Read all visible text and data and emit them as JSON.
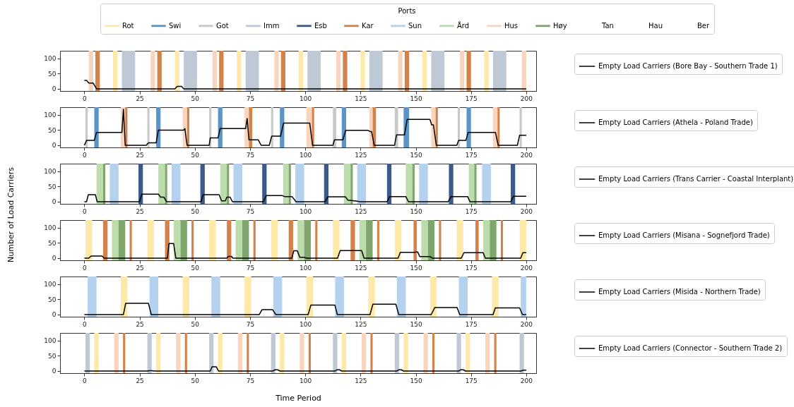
{
  "chart_data": [
    {
      "type": "line",
      "legend_title": "Ports",
      "legend": "right",
      "xlim": [
        -11,
        204.5
      ],
      "xticks": [
        0,
        25,
        50,
        75,
        100,
        125,
        150,
        175,
        200
      ],
      "ylim": [
        -7,
        125
      ],
      "yticks": [
        0,
        50,
        100
      ],
      "series": [
        {
          "name": "Empty Load Carriers (Bore Bay - Southern Trade 1)",
          "color": "#000000",
          "x": [
            0,
            1,
            2,
            4,
            5.5,
            41,
            42,
            44,
            45,
            200
          ],
          "values": [
            28,
            28,
            19,
            19,
            0,
            0,
            8,
            8,
            0,
            0
          ]
        },
        {
          "name": "Rot",
          "color": "#fee9a8",
          "type": "area"
        },
        {
          "name": "Swi",
          "color": "#5b95c8",
          "type": "area"
        },
        {
          "name": "Got",
          "color": "#c8c8c8",
          "type": "area"
        },
        {
          "name": "Imm",
          "color": "#bfc9d6",
          "type": "area"
        },
        {
          "name": "Esb",
          "color": "#3b5a8c",
          "type": "area"
        },
        {
          "name": "Kar",
          "color": "#d3824a",
          "type": "area"
        },
        {
          "name": "Sun",
          "color": "#b4d2ee",
          "type": "area"
        },
        {
          "name": "Ård",
          "color": "#bcdcab",
          "type": "area"
        },
        {
          "name": "Hus",
          "color": "#f9d5bd",
          "type": "area"
        },
        {
          "name": "Høy",
          "color": "#7ea56b",
          "type": "area"
        },
        {
          "name": "Tan",
          "type": "area"
        },
        {
          "name": "Hau",
          "type": "area"
        },
        {
          "name": "Ber",
          "type": "area"
        }
      ],
      "bands": [
        {
          "axis": "x",
          "from": 2,
          "to": 4,
          "color": "#f9d5bd"
        },
        {
          "axis": "x",
          "from": 30,
          "to": 32,
          "color": "#f9d5bd"
        },
        {
          "axis": "x",
          "from": 58,
          "to": 60,
          "color": "#f9d5bd"
        },
        {
          "axis": "x",
          "from": 86,
          "to": 88,
          "color": "#f9d5bd"
        },
        {
          "axis": "x",
          "from": 114,
          "to": 116,
          "color": "#f9d5bd"
        },
        {
          "axis": "x",
          "from": 142,
          "to": 144,
          "color": "#f9d5bd"
        },
        {
          "axis": "x",
          "from": 170,
          "to": 172,
          "color": "#f9d5bd"
        },
        {
          "axis": "x",
          "from": 198,
          "to": 200,
          "color": "#f9d5bd"
        },
        {
          "axis": "x",
          "from": 5,
          "to": 7,
          "color": "#d3824a"
        },
        {
          "axis": "x",
          "from": 33,
          "to": 35,
          "color": "#d3824a"
        },
        {
          "axis": "x",
          "from": 61,
          "to": 63,
          "color": "#d3824a"
        },
        {
          "axis": "x",
          "from": 89,
          "to": 91,
          "color": "#d3824a"
        },
        {
          "axis": "x",
          "from": 117,
          "to": 119,
          "color": "#d3824a"
        },
        {
          "axis": "x",
          "from": 145,
          "to": 147,
          "color": "#d3824a"
        },
        {
          "axis": "x",
          "from": 173,
          "to": 175,
          "color": "#d3824a"
        },
        {
          "axis": "x",
          "from": 13,
          "to": 15,
          "color": "#fee9a8"
        },
        {
          "axis": "x",
          "from": 41,
          "to": 43,
          "color": "#fee9a8"
        },
        {
          "axis": "x",
          "from": 69,
          "to": 71,
          "color": "#fee9a8"
        },
        {
          "axis": "x",
          "from": 97,
          "to": 99,
          "color": "#fee9a8"
        },
        {
          "axis": "x",
          "from": 125,
          "to": 127,
          "color": "#fee9a8"
        },
        {
          "axis": "x",
          "from": 153,
          "to": 155,
          "color": "#fee9a8"
        },
        {
          "axis": "x",
          "from": 181,
          "to": 183,
          "color": "#fee9a8"
        },
        {
          "axis": "x",
          "from": 17,
          "to": 23,
          "color": "#bfc9d6"
        },
        {
          "axis": "x",
          "from": 45,
          "to": 51,
          "color": "#bfc9d6"
        },
        {
          "axis": "x",
          "from": 73,
          "to": 79,
          "color": "#bfc9d6"
        },
        {
          "axis": "x",
          "from": 101,
          "to": 107,
          "color": "#bfc9d6"
        },
        {
          "axis": "x",
          "from": 129,
          "to": 135,
          "color": "#bfc9d6"
        },
        {
          "axis": "x",
          "from": 157,
          "to": 163,
          "color": "#bfc9d6"
        },
        {
          "axis": "x",
          "from": 185,
          "to": 191,
          "color": "#bfc9d6"
        }
      ]
    },
    {
      "type": "line",
      "legend": "right",
      "xlim": [
        -11,
        204.5
      ],
      "xticks": [
        0,
        25,
        50,
        75,
        100,
        125,
        150,
        175,
        200
      ],
      "ylim": [
        -7,
        125
      ],
      "yticks": [
        0,
        50,
        100
      ],
      "series": [
        {
          "name": "Empty Load Carriers (Athela - Poland Trade)",
          "color": "#000000",
          "x": [
            0,
            1,
            4.5,
            5.5,
            17,
            17.7,
            18.5,
            28,
            29,
            32.5,
            33.5,
            45,
            45.5,
            46.5,
            56.5,
            57,
            60.5,
            61.5,
            73,
            73.7,
            74.5,
            78.7,
            80,
            83.7,
            84.8,
            88.8,
            90.2,
            102,
            103.3,
            112.5,
            113.2,
            117,
            118.3,
            128.4,
            129.4,
            130,
            131.2,
            140.4,
            141.3,
            144.9,
            146.1,
            156.4,
            157.2,
            158,
            159.3,
            168.6,
            169.4,
            172.7,
            173.7,
            186.1,
            187.3,
            196,
            197,
            200
          ],
          "values": [
            0,
            16,
            16,
            42,
            42,
            118,
            0,
            0,
            8,
            8,
            50,
            50,
            55,
            0,
            0,
            24,
            24,
            55,
            55,
            88,
            18,
            18,
            0,
            0,
            30,
            30,
            73,
            73,
            0,
            0,
            18,
            18,
            49,
            49,
            45,
            45,
            0,
            0,
            34,
            34,
            85,
            85,
            67,
            67,
            0,
            0,
            16,
            16,
            42,
            42,
            0,
            0,
            33,
            33
          ]
        }
      ],
      "bands": [
        {
          "axis": "x",
          "from": 0.5,
          "to": 1.5,
          "color": "#c8c8c8"
        },
        {
          "axis": "x",
          "from": 28.5,
          "to": 29.5,
          "color": "#c8c8c8"
        },
        {
          "axis": "x",
          "from": 56.5,
          "to": 57.5,
          "color": "#c8c8c8"
        },
        {
          "axis": "x",
          "from": 84.5,
          "to": 85.5,
          "color": "#c8c8c8"
        },
        {
          "axis": "x",
          "from": 112.5,
          "to": 114,
          "color": "#c8c8c8"
        },
        {
          "axis": "x",
          "from": 140.5,
          "to": 142,
          "color": "#c8c8c8"
        },
        {
          "axis": "x",
          "from": 169,
          "to": 170,
          "color": "#c8c8c8"
        },
        {
          "axis": "x",
          "from": 197,
          "to": 198,
          "color": "#c8c8c8"
        },
        {
          "axis": "x",
          "from": 4.5,
          "to": 6.5,
          "color": "#5b95c8"
        },
        {
          "axis": "x",
          "from": 32.5,
          "to": 34.5,
          "color": "#5b95c8"
        },
        {
          "axis": "x",
          "from": 60.5,
          "to": 62.5,
          "color": "#5b95c8"
        },
        {
          "axis": "x",
          "from": 88.5,
          "to": 90.5,
          "color": "#5b95c8"
        },
        {
          "axis": "x",
          "from": 116.5,
          "to": 118.5,
          "color": "#5b95c8"
        },
        {
          "axis": "x",
          "from": 144.5,
          "to": 147,
          "color": "#5b95c8"
        },
        {
          "axis": "x",
          "from": 173,
          "to": 175,
          "color": "#5b95c8"
        },
        {
          "axis": "x",
          "from": 16.5,
          "to": 18.5,
          "color": "#f9d5bd"
        },
        {
          "axis": "x",
          "from": 44.5,
          "to": 46.5,
          "color": "#f9d5bd"
        },
        {
          "axis": "x",
          "from": 72.5,
          "to": 74.5,
          "color": "#f9d5bd"
        },
        {
          "axis": "x",
          "from": 100.5,
          "to": 103,
          "color": "#f9d5bd"
        },
        {
          "axis": "x",
          "from": 129,
          "to": 130.5,
          "color": "#f9d5bd"
        },
        {
          "axis": "x",
          "from": 157,
          "to": 159,
          "color": "#f9d5bd"
        },
        {
          "axis": "x",
          "from": 185,
          "to": 187,
          "color": "#f9d5bd"
        },
        {
          "axis": "x",
          "from": 18.5,
          "to": 19.5,
          "color": "#d3824a"
        },
        {
          "axis": "x",
          "from": 46.5,
          "to": 47.5,
          "color": "#d3824a"
        },
        {
          "axis": "x",
          "from": 74.5,
          "to": 76,
          "color": "#d3824a"
        },
        {
          "axis": "x",
          "from": 103,
          "to": 104,
          "color": "#d3824a"
        },
        {
          "axis": "x",
          "from": 130.5,
          "to": 132,
          "color": "#d3824a"
        },
        {
          "axis": "x",
          "from": 159,
          "to": 160,
          "color": "#d3824a"
        },
        {
          "axis": "x",
          "from": 187,
          "to": 188,
          "color": "#d3824a"
        }
      ]
    },
    {
      "type": "line",
      "legend": "right",
      "ylabel": "Number of Load Carriers",
      "xlim": [
        -11,
        204.5
      ],
      "xticks": [
        0,
        25,
        50,
        75,
        100,
        125,
        150,
        175,
        200
      ],
      "ylim": [
        -7,
        125
      ],
      "yticks": [
        0,
        50,
        100
      ],
      "series": [
        {
          "name": "Empty Load Carriers (Trans Carrier - Coastal Interplant)",
          "color": "#000000",
          "x": [
            0,
            1,
            1.8,
            5,
            5.8,
            25,
            26,
            33.5,
            34.5,
            36,
            37.2,
            52.8,
            53.8,
            61,
            62.1,
            63.8,
            64.5,
            66,
            67,
            81,
            82.3,
            89.6,
            90.7,
            94,
            95.8,
            109,
            110.2,
            118.2,
            119.3,
            123,
            125,
            137,
            138.2,
            145.5,
            146.7,
            164.7,
            166,
            173.5,
            174.5,
            193,
            194.2,
            200
          ],
          "values": [
            0,
            0,
            23,
            23,
            0,
            0,
            25,
            25,
            15,
            15,
            0,
            0,
            23,
            23,
            3,
            3,
            15,
            15,
            0,
            0,
            20,
            20,
            17,
            17,
            0,
            0,
            16,
            16,
            5,
            2,
            0,
            0,
            17,
            17,
            0,
            0,
            17,
            17,
            0,
            0,
            18,
            18
          ]
        }
      ],
      "bands": [
        {
          "axis": "x",
          "from": 5.5,
          "to": 8.5,
          "color": "#bcdcab"
        },
        {
          "axis": "x",
          "from": 33.5,
          "to": 36.5,
          "color": "#bcdcab"
        },
        {
          "axis": "x",
          "from": 61.5,
          "to": 64.5,
          "color": "#bcdcab"
        },
        {
          "axis": "x",
          "from": 90,
          "to": 92.5,
          "color": "#bcdcab"
        },
        {
          "axis": "x",
          "from": 117.5,
          "to": 120.5,
          "color": "#bcdcab"
        },
        {
          "axis": "x",
          "from": 145.5,
          "to": 148.5,
          "color": "#bcdcab"
        },
        {
          "axis": "x",
          "from": 174,
          "to": 176.5,
          "color": "#bcdcab"
        },
        {
          "axis": "x",
          "from": 8.5,
          "to": 9.5,
          "color": "#7ea56b"
        },
        {
          "axis": "x",
          "from": 36.5,
          "to": 37.5,
          "color": "#7ea56b"
        },
        {
          "axis": "x",
          "from": 64.5,
          "to": 65.5,
          "color": "#7ea56b"
        },
        {
          "axis": "x",
          "from": 92.5,
          "to": 93.5,
          "color": "#7ea56b"
        },
        {
          "axis": "x",
          "from": 120.5,
          "to": 121.5,
          "color": "#7ea56b"
        },
        {
          "axis": "x",
          "from": 148.5,
          "to": 149.5,
          "color": "#7ea56b"
        },
        {
          "axis": "x",
          "from": 176.5,
          "to": 177.5,
          "color": "#7ea56b"
        },
        {
          "axis": "x",
          "from": 11.5,
          "to": 15.5,
          "color": "#b4d2ee"
        },
        {
          "axis": "x",
          "from": 39.5,
          "to": 43.5,
          "color": "#b4d2ee"
        },
        {
          "axis": "x",
          "from": 67.5,
          "to": 71.5,
          "color": "#b4d2ee"
        },
        {
          "axis": "x",
          "from": 95.5,
          "to": 99.5,
          "color": "#b4d2ee"
        },
        {
          "axis": "x",
          "from": 123.5,
          "to": 127.5,
          "color": "#b4d2ee"
        },
        {
          "axis": "x",
          "from": 151.5,
          "to": 155.5,
          "color": "#b4d2ee"
        },
        {
          "axis": "x",
          "from": 180,
          "to": 184,
          "color": "#b4d2ee"
        },
        {
          "axis": "x",
          "from": 24.5,
          "to": 26.5,
          "color": "#3b5a8c"
        },
        {
          "axis": "x",
          "from": 52.5,
          "to": 54.5,
          "color": "#3b5a8c"
        },
        {
          "axis": "x",
          "from": 80.5,
          "to": 82.5,
          "color": "#3b5a8c"
        },
        {
          "axis": "x",
          "from": 108.5,
          "to": 110.5,
          "color": "#3b5a8c"
        },
        {
          "axis": "x",
          "from": 137,
          "to": 139,
          "color": "#3b5a8c"
        },
        {
          "axis": "x",
          "from": 165,
          "to": 167,
          "color": "#3b5a8c"
        },
        {
          "axis": "x",
          "from": 193,
          "to": 195,
          "color": "#3b5a8c"
        }
      ]
    },
    {
      "type": "line",
      "legend": "right",
      "xlim": [
        -11,
        204.5
      ],
      "xticks": [
        0,
        25,
        50,
        75,
        100,
        125,
        150,
        175,
        200
      ],
      "ylim": [
        -7,
        125
      ],
      "yticks": [
        0,
        50,
        100
      ],
      "series": [
        {
          "name": "Empty Load Carriers (Misana - Sognefjord Trade)",
          "color": "#000000",
          "x": [
            0,
            2,
            3,
            8,
            9,
            37.6,
            38.3,
            40.4,
            41.4,
            64.4,
            65.3,
            66.5,
            67.3,
            93.9,
            94.8,
            96.4,
            97.5,
            99.5,
            100.5,
            114.6,
            115.8,
            125.5,
            126.6,
            142,
            143,
            149.5,
            150,
            150.9,
            151.8,
            156.5,
            157.5,
            170.6,
            171.8,
            180.5,
            181.5,
            197.5,
            198.5,
            200
          ],
          "values": [
            0,
            0,
            7,
            7,
            0,
            0,
            48,
            48,
            0,
            0,
            6,
            6,
            0,
            0,
            24,
            24,
            3,
            3,
            0,
            0,
            25,
            25,
            0,
            0,
            19,
            19,
            20,
            20,
            5,
            5,
            0,
            0,
            18,
            18,
            0,
            0,
            18,
            18
          ]
        }
      ],
      "bands": [
        {
          "axis": "x",
          "from": 0.5,
          "to": 3.5,
          "color": "#fee9a8"
        },
        {
          "axis": "x",
          "from": 28.5,
          "to": 31.5,
          "color": "#fee9a8"
        },
        {
          "axis": "x",
          "from": 56.5,
          "to": 59.5,
          "color": "#fee9a8"
        },
        {
          "axis": "x",
          "from": 84.5,
          "to": 87.5,
          "color": "#fee9a8"
        },
        {
          "axis": "x",
          "from": 112.5,
          "to": 115.5,
          "color": "#fee9a8"
        },
        {
          "axis": "x",
          "from": 140.5,
          "to": 143.5,
          "color": "#fee9a8"
        },
        {
          "axis": "x",
          "from": 168.5,
          "to": 171.5,
          "color": "#fee9a8"
        },
        {
          "axis": "x",
          "from": 197,
          "to": 200,
          "color": "#fee9a8"
        },
        {
          "axis": "x",
          "from": 8.5,
          "to": 10.5,
          "color": "#d3824a"
        },
        {
          "axis": "x",
          "from": 36.5,
          "to": 38.5,
          "color": "#d3824a"
        },
        {
          "axis": "x",
          "from": 64.5,
          "to": 66.5,
          "color": "#d3824a"
        },
        {
          "axis": "x",
          "from": 92.5,
          "to": 94.5,
          "color": "#d3824a"
        },
        {
          "axis": "x",
          "from": 120.5,
          "to": 122.5,
          "color": "#d3824a"
        },
        {
          "axis": "x",
          "from": 149,
          "to": 150.5,
          "color": "#d3824a"
        },
        {
          "axis": "x",
          "from": 177,
          "to": 178.5,
          "color": "#d3824a"
        },
        {
          "axis": "x",
          "from": 12.5,
          "to": 15.5,
          "color": "#bcdcab"
        },
        {
          "axis": "x",
          "from": 40.5,
          "to": 43.5,
          "color": "#bcdcab"
        },
        {
          "axis": "x",
          "from": 68.5,
          "to": 71.5,
          "color": "#bcdcab"
        },
        {
          "axis": "x",
          "from": 96.5,
          "to": 99.5,
          "color": "#bcdcab"
        },
        {
          "axis": "x",
          "from": 124.5,
          "to": 127.5,
          "color": "#bcdcab"
        },
        {
          "axis": "x",
          "from": 152.5,
          "to": 155.5,
          "color": "#bcdcab"
        },
        {
          "axis": "x",
          "from": 180.5,
          "to": 183.5,
          "color": "#bcdcab"
        },
        {
          "axis": "x",
          "from": 15.5,
          "to": 18.5,
          "color": "#7ea56b"
        },
        {
          "axis": "x",
          "from": 43.5,
          "to": 46.5,
          "color": "#7ea56b"
        },
        {
          "axis": "x",
          "from": 71.5,
          "to": 74.5,
          "color": "#7ea56b"
        },
        {
          "axis": "x",
          "from": 99.5,
          "to": 102.5,
          "color": "#7ea56b"
        },
        {
          "axis": "x",
          "from": 127.5,
          "to": 130.5,
          "color": "#7ea56b"
        },
        {
          "axis": "x",
          "from": 155.5,
          "to": 158.5,
          "color": "#7ea56b"
        },
        {
          "axis": "x",
          "from": 183.5,
          "to": 186.5,
          "color": "#7ea56b"
        },
        {
          "axis": "x",
          "from": 20.5,
          "to": 21.5,
          "color": "#d3824a"
        },
        {
          "axis": "x",
          "from": 48.5,
          "to": 49.5,
          "color": "#d3824a"
        },
        {
          "axis": "x",
          "from": 76.5,
          "to": 77.5,
          "color": "#d3824a"
        },
        {
          "axis": "x",
          "from": 104.5,
          "to": 105.5,
          "color": "#d3824a"
        },
        {
          "axis": "x",
          "from": 132.5,
          "to": 133.5,
          "color": "#d3824a"
        },
        {
          "axis": "x",
          "from": 160.5,
          "to": 161.5,
          "color": "#d3824a"
        },
        {
          "axis": "x",
          "from": 188.5,
          "to": 189.5,
          "color": "#d3824a"
        }
      ]
    },
    {
      "type": "line",
      "legend": "right",
      "xlim": [
        -11,
        204.5
      ],
      "xticks": [
        0,
        25,
        50,
        75,
        100,
        125,
        150,
        175,
        200
      ],
      "ylim": [
        -7,
        125
      ],
      "yticks": [
        0,
        50,
        100
      ],
      "series": [
        {
          "name": "Empty Load Carriers (Misida - Northern Trade)",
          "color": "#000000",
          "x": [
            0,
            17.7,
            18.7,
            29,
            30.3,
            79.2,
            80.4,
            85.2,
            86.7,
            101.3,
            102.5,
            113.4,
            114.5,
            129.3,
            130.6,
            141,
            142.3,
            157,
            158.6,
            168.7,
            169.9,
            185,
            186,
            197,
            198.3,
            200
          ],
          "values": [
            0,
            0,
            37,
            37,
            0,
            0,
            16,
            16,
            0,
            0,
            31,
            31,
            0,
            0,
            34,
            34,
            0,
            0,
            23,
            23,
            0,
            0,
            22,
            22,
            0,
            0
          ]
        }
      ],
      "bands": [
        {
          "axis": "x",
          "from": 1.5,
          "to": 5.5,
          "color": "#b4d2ee"
        },
        {
          "axis": "x",
          "from": 29.5,
          "to": 33.5,
          "color": "#b4d2ee"
        },
        {
          "axis": "x",
          "from": 57.5,
          "to": 61.5,
          "color": "#b4d2ee"
        },
        {
          "axis": "x",
          "from": 85.5,
          "to": 89.5,
          "color": "#b4d2ee"
        },
        {
          "axis": "x",
          "from": 113.5,
          "to": 117.5,
          "color": "#b4d2ee"
        },
        {
          "axis": "x",
          "from": 141.5,
          "to": 145.5,
          "color": "#b4d2ee"
        },
        {
          "axis": "x",
          "from": 169.5,
          "to": 173.5,
          "color": "#b4d2ee"
        },
        {
          "axis": "x",
          "from": 197.5,
          "to": 200,
          "color": "#b4d2ee"
        },
        {
          "axis": "x",
          "from": 16.5,
          "to": 19.5,
          "color": "#fee9a8"
        },
        {
          "axis": "x",
          "from": 44.5,
          "to": 47.5,
          "color": "#fee9a8"
        },
        {
          "axis": "x",
          "from": 72.5,
          "to": 75.5,
          "color": "#fee9a8"
        },
        {
          "axis": "x",
          "from": 100.5,
          "to": 103.5,
          "color": "#fee9a8"
        },
        {
          "axis": "x",
          "from": 128.5,
          "to": 131.5,
          "color": "#fee9a8"
        },
        {
          "axis": "x",
          "from": 156.5,
          "to": 159.5,
          "color": "#fee9a8"
        },
        {
          "axis": "x",
          "from": 184.5,
          "to": 187.5,
          "color": "#fee9a8"
        }
      ]
    },
    {
      "type": "line",
      "legend": "right",
      "xlabel": "Time Period",
      "xlim": [
        -11,
        204.5
      ],
      "xticks": [
        0,
        25,
        50,
        75,
        100,
        125,
        150,
        175,
        200
      ],
      "ylim": [
        -7,
        125
      ],
      "yticks": [
        0,
        50,
        100
      ],
      "series": [
        {
          "name": "Empty Load Carriers (Connector - Southern Trade 2)",
          "color": "#000000",
          "x": [
            0,
            28.5,
            29.5,
            30.5,
            31.5,
            57,
            57.8,
            59.7,
            60.7,
            85.4,
            86.3,
            87.5,
            88.5,
            113.5,
            114.3,
            115.5,
            116.5,
            141.5,
            142.3,
            143.5,
            144.5,
            169.5,
            170.3,
            171.5,
            172.5,
            197.8,
            198.6,
            200
          ],
          "values": [
            0,
            0,
            1,
            1,
            0,
            0,
            14,
            14,
            0,
            0,
            4,
            4,
            0,
            0,
            4,
            4,
            0,
            0,
            4,
            4,
            0,
            0,
            4,
            4,
            0,
            0,
            3,
            3
          ]
        }
      ],
      "bands": [
        {
          "axis": "x",
          "from": 0.5,
          "to": 2.5,
          "color": "#bfc9d6"
        },
        {
          "axis": "x",
          "from": 28.5,
          "to": 30.5,
          "color": "#bfc9d6"
        },
        {
          "axis": "x",
          "from": 56.5,
          "to": 58.5,
          "color": "#bfc9d6"
        },
        {
          "axis": "x",
          "from": 84.5,
          "to": 86.5,
          "color": "#bfc9d6"
        },
        {
          "axis": "x",
          "from": 112.5,
          "to": 114.5,
          "color": "#bfc9d6"
        },
        {
          "axis": "x",
          "from": 140.5,
          "to": 142.5,
          "color": "#bfc9d6"
        },
        {
          "axis": "x",
          "from": 168.5,
          "to": 170.5,
          "color": "#bfc9d6"
        },
        {
          "axis": "x",
          "from": 197,
          "to": 199,
          "color": "#bfc9d6"
        },
        {
          "axis": "x",
          "from": 4.5,
          "to": 6.5,
          "color": "#fee9a8"
        },
        {
          "axis": "x",
          "from": 32.5,
          "to": 34.5,
          "color": "#fee9a8"
        },
        {
          "axis": "x",
          "from": 60.5,
          "to": 62.5,
          "color": "#fee9a8"
        },
        {
          "axis": "x",
          "from": 88.5,
          "to": 90.5,
          "color": "#fee9a8"
        },
        {
          "axis": "x",
          "from": 116.5,
          "to": 118.5,
          "color": "#fee9a8"
        },
        {
          "axis": "x",
          "from": 144.5,
          "to": 146.5,
          "color": "#fee9a8"
        },
        {
          "axis": "x",
          "from": 172.5,
          "to": 174.5,
          "color": "#fee9a8"
        },
        {
          "axis": "x",
          "from": 13.5,
          "to": 15.5,
          "color": "#f9d5bd"
        },
        {
          "axis": "x",
          "from": 41.5,
          "to": 43.5,
          "color": "#f9d5bd"
        },
        {
          "axis": "x",
          "from": 69.5,
          "to": 71.5,
          "color": "#f9d5bd"
        },
        {
          "axis": "x",
          "from": 97.5,
          "to": 99.5,
          "color": "#f9d5bd"
        },
        {
          "axis": "x",
          "from": 125.5,
          "to": 127.5,
          "color": "#f9d5bd"
        },
        {
          "axis": "x",
          "from": 153.5,
          "to": 155.5,
          "color": "#f9d5bd"
        },
        {
          "axis": "x",
          "from": 181.5,
          "to": 183.5,
          "color": "#f9d5bd"
        },
        {
          "axis": "x",
          "from": 17.5,
          "to": 18.5,
          "color": "#d3824a"
        },
        {
          "axis": "x",
          "from": 45.5,
          "to": 46.5,
          "color": "#d3824a"
        },
        {
          "axis": "x",
          "from": 73.5,
          "to": 74.5,
          "color": "#d3824a"
        },
        {
          "axis": "x",
          "from": 101.5,
          "to": 102.5,
          "color": "#d3824a"
        },
        {
          "axis": "x",
          "from": 129.5,
          "to": 130.5,
          "color": "#d3824a"
        },
        {
          "axis": "x",
          "from": 157.5,
          "to": 158.5,
          "color": "#d3824a"
        },
        {
          "axis": "x",
          "from": 185.5,
          "to": 186.5,
          "color": "#d3824a"
        }
      ]
    }
  ]
}
